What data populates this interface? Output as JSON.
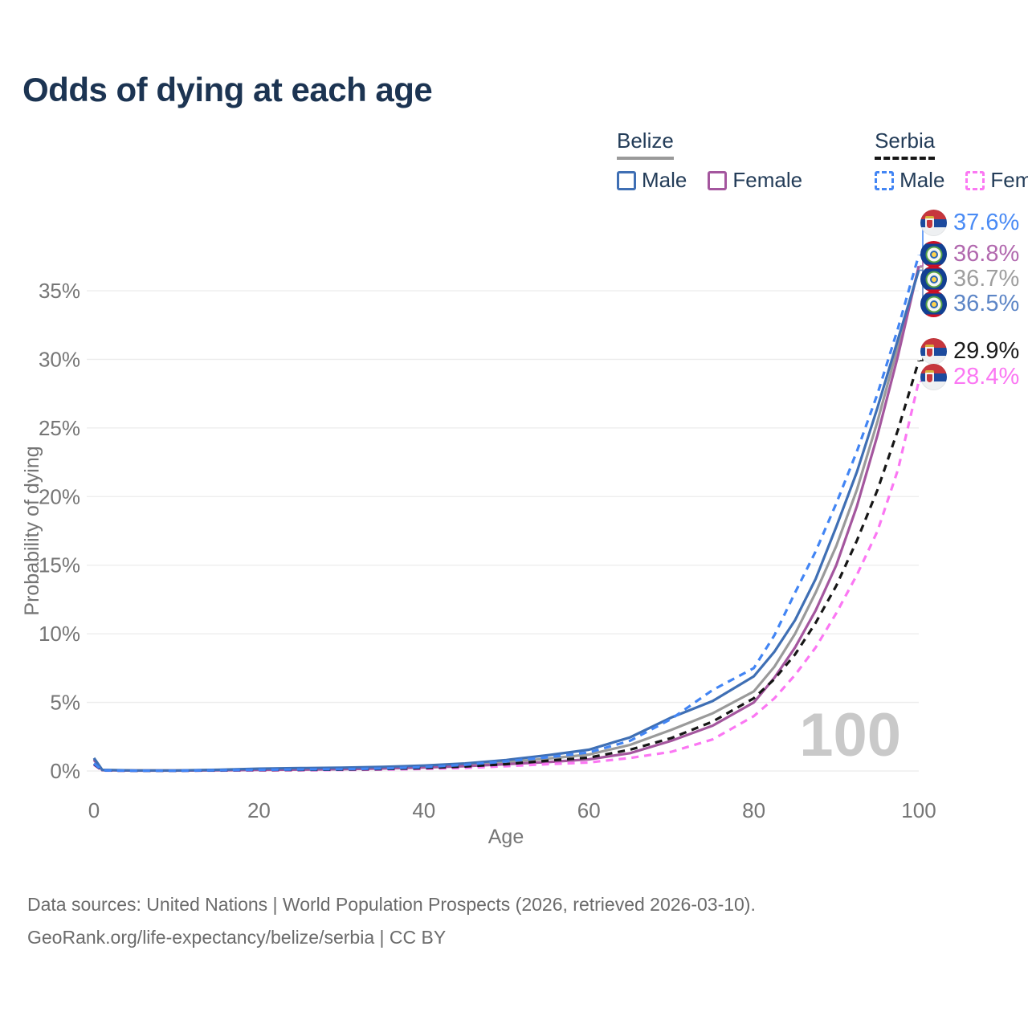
{
  "title": "Odds of dying at each age",
  "legend": {
    "groups": [
      {
        "country": "Belize",
        "line_style": "solid",
        "line_color": "#9a9a9a",
        "items": [
          {
            "label": "Male",
            "color": "#3f6fb4",
            "dash": false
          },
          {
            "label": "Female",
            "color": "#a4569e",
            "dash": false
          }
        ]
      },
      {
        "country": "Serbia",
        "line_style": "dashed",
        "line_color": "#161616",
        "items": [
          {
            "label": "Male",
            "color": "#4285f4",
            "dash": true
          },
          {
            "label": "Female",
            "color": "#fb77f3",
            "dash": true
          }
        ]
      }
    ]
  },
  "axes": {
    "x_title": "Age",
    "y_title": "Probability of dying",
    "x_ticks": [
      0,
      20,
      40,
      60,
      80,
      100
    ],
    "y_ticks": [
      "0%",
      "5%",
      "10%",
      "15%",
      "20%",
      "25%",
      "30%",
      "35%"
    ],
    "y_tick_values": [
      0,
      5,
      10,
      15,
      20,
      25,
      30,
      35
    ]
  },
  "watermark": "100",
  "end_labels": [
    {
      "value": "37.6%",
      "series": "serbia_male",
      "flag": "serbia",
      "color": "#4a8bf5"
    },
    {
      "value": "36.8%",
      "series": "belize_female",
      "flag": "belize",
      "color": "#b168ae"
    },
    {
      "value": "36.7%",
      "series": "belize_total",
      "flag": "belize",
      "color": "#9e9e9e"
    },
    {
      "value": "36.5%",
      "series": "belize_male",
      "flag": "belize",
      "color": "#5c85c6"
    },
    {
      "value": "29.9%",
      "series": "serbia_total",
      "flag": "serbia",
      "color": "#1a1a1a"
    },
    {
      "value": "28.4%",
      "series": "serbia_female",
      "flag": "serbia",
      "color": "#fb77f3"
    }
  ],
  "chart_data": {
    "type": "line",
    "title": "Odds of dying at each age",
    "xlabel": "Age",
    "ylabel": "Probability of dying",
    "xlim": [
      0,
      100
    ],
    "ylim": [
      0,
      38
    ],
    "grid": true,
    "legend_position": "top-right",
    "x": [
      0,
      1,
      5,
      10,
      15,
      20,
      25,
      30,
      35,
      40,
      45,
      50,
      55,
      60,
      65,
      70,
      75,
      80,
      82.5,
      85,
      87.5,
      90,
      92.5,
      95,
      97.5,
      100
    ],
    "series": [
      {
        "key": "belize_male",
        "name": "Belize Male",
        "color": "#3f6fb4",
        "dash": false,
        "end_value": 36.5,
        "values": [
          0.95,
          0.08,
          0.04,
          0.04,
          0.09,
          0.17,
          0.21,
          0.24,
          0.3,
          0.4,
          0.55,
          0.8,
          1.15,
          1.55,
          2.45,
          3.9,
          5.1,
          6.9,
          8.7,
          11.0,
          14.0,
          17.8,
          21.8,
          26.5,
          31.5,
          36.5
        ]
      },
      {
        "key": "belize_female",
        "name": "Belize Female",
        "color": "#a4569e",
        "dash": false,
        "end_value": 36.8,
        "values": [
          0.8,
          0.06,
          0.03,
          0.03,
          0.05,
          0.08,
          0.1,
          0.13,
          0.18,
          0.25,
          0.35,
          0.5,
          0.65,
          0.85,
          1.3,
          2.2,
          3.3,
          5.0,
          6.8,
          9.0,
          11.7,
          15.0,
          19.3,
          24.5,
          30.3,
          36.8
        ]
      },
      {
        "key": "belize_total",
        "name": "Belize",
        "color": "#9a9a9a",
        "dash": false,
        "end_value": 36.7,
        "values": [
          0.88,
          0.07,
          0.04,
          0.04,
          0.07,
          0.13,
          0.16,
          0.19,
          0.24,
          0.33,
          0.45,
          0.65,
          0.9,
          1.2,
          1.9,
          3.0,
          4.2,
          5.8,
          7.6,
          10.0,
          13.0,
          16.4,
          20.5,
          25.5,
          31.0,
          36.7
        ]
      },
      {
        "key": "serbia_male",
        "name": "Serbia Male",
        "color": "#4285f4",
        "dash": true,
        "end_value": 37.6,
        "values": [
          0.55,
          0.04,
          0.02,
          0.02,
          0.05,
          0.09,
          0.11,
          0.13,
          0.18,
          0.28,
          0.45,
          0.7,
          1.0,
          1.35,
          2.2,
          3.8,
          5.9,
          7.5,
          9.9,
          13.0,
          16.0,
          19.5,
          23.3,
          27.5,
          32.3,
          37.6
        ]
      },
      {
        "key": "serbia_female",
        "name": "Serbia Female",
        "color": "#fb77f3",
        "dash": true,
        "end_value": 28.4,
        "values": [
          0.45,
          0.03,
          0.02,
          0.02,
          0.03,
          0.04,
          0.05,
          0.07,
          0.1,
          0.15,
          0.22,
          0.35,
          0.5,
          0.62,
          0.95,
          1.4,
          2.3,
          4.0,
          5.3,
          7.0,
          9.0,
          11.5,
          14.3,
          17.5,
          22.0,
          28.4
        ]
      },
      {
        "key": "serbia_total",
        "name": "Serbia",
        "color": "#161616",
        "dash": true,
        "end_value": 29.9,
        "values": [
          0.5,
          0.04,
          0.02,
          0.02,
          0.04,
          0.07,
          0.08,
          0.1,
          0.14,
          0.21,
          0.33,
          0.5,
          0.75,
          0.98,
          1.55,
          2.4,
          3.6,
          5.3,
          6.7,
          8.5,
          10.8,
          13.5,
          16.8,
          20.5,
          24.9,
          29.9
        ]
      }
    ]
  },
  "footer": {
    "line1": "Data sources: United Nations | World Population Prospects (2026, retrieved 2026-03-10).",
    "line2": "GeoRank.org/life-expectancy/belize/serbia | CC BY"
  }
}
